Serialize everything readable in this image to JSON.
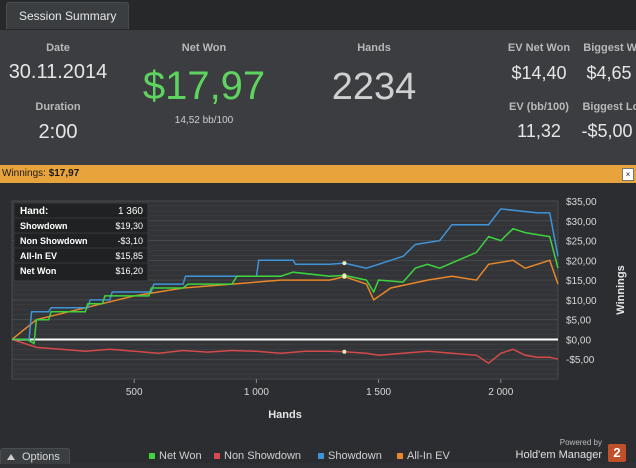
{
  "tab": {
    "label": "Session Summary"
  },
  "stats": {
    "date_label": "Date",
    "date": "30.11.2014",
    "duration_label": "Duration",
    "duration": "2:00",
    "net_won_label": "Net Won",
    "net_won": "$17,97",
    "bb_per_100": "14,52 bb/100",
    "hands_label": "Hands",
    "hands": "2234",
    "ev_net_won_label": "EV Net Won",
    "ev_net_won": "$14,40",
    "biggest_win_label": "Biggest Win",
    "biggest_win": "$4,65",
    "ev_bb_label": "EV (bb/100)",
    "ev_bb": "11,32",
    "biggest_loss_label": "Biggest Loss",
    "biggest_loss": "-$5,00"
  },
  "banner": {
    "label": "Winnings:",
    "value": "$17,97",
    "close_glyph": "×"
  },
  "tooltip": {
    "rows": [
      {
        "label": "Hand:",
        "value": "1 360"
      },
      {
        "label": "Showdown",
        "value": "$19,30"
      },
      {
        "label": "Non Showdown",
        "value": "-$3,10"
      },
      {
        "label": "All-In EV",
        "value": "$15,85"
      },
      {
        "label": "Net Won",
        "value": "$16,20"
      }
    ]
  },
  "legend": [
    {
      "name": "Net Won",
      "color": "#3ed43e"
    },
    {
      "name": "Non Showdown",
      "color": "#d44a4a"
    },
    {
      "name": "Showdown",
      "color": "#3f94d8"
    },
    {
      "name": "All-In EV",
      "color": "#e8872a"
    }
  ],
  "footer": {
    "options_label": "Options",
    "options_icon": "chevron-up-icon",
    "powered_by": "Powered by",
    "brand": "Hold'em Manager",
    "brand_version": "2"
  },
  "chart_data": {
    "type": "line",
    "xlabel": "Hands",
    "ylabel": "Winnings",
    "xlim": [
      0,
      2234
    ],
    "ylim": [
      -10,
      35
    ],
    "x_ticks": [
      500,
      1000,
      1500,
      2000
    ],
    "x_tick_labels": [
      "500",
      "1 000",
      "1 500",
      "2 000"
    ],
    "y_ticks": [
      -5,
      0,
      5,
      10,
      15,
      20,
      25,
      30,
      35
    ],
    "y_tick_labels": [
      "-$5,00",
      "$0,00",
      "$5,00",
      "$10,00",
      "$15,00",
      "$20,00",
      "$25,00",
      "$30,00",
      "$35,00"
    ],
    "grid": true,
    "highlight_x": 1360,
    "series": [
      {
        "name": "Net Won",
        "color": "#3ed43e",
        "points": [
          [
            0,
            0
          ],
          [
            60,
            0
          ],
          [
            90,
            -1
          ],
          [
            100,
            5
          ],
          [
            150,
            5
          ],
          [
            160,
            7
          ],
          [
            300,
            7
          ],
          [
            310,
            9
          ],
          [
            370,
            9
          ],
          [
            380,
            11
          ],
          [
            560,
            11
          ],
          [
            570,
            13
          ],
          [
            700,
            13
          ],
          [
            720,
            14
          ],
          [
            900,
            14
          ],
          [
            920,
            16
          ],
          [
            1100,
            16
          ],
          [
            1150,
            17
          ],
          [
            1300,
            16
          ],
          [
            1360,
            16.2
          ],
          [
            1450,
            15
          ],
          [
            1480,
            12
          ],
          [
            1500,
            15
          ],
          [
            1600,
            14.5
          ],
          [
            1650,
            18
          ],
          [
            1700,
            19
          ],
          [
            1750,
            18
          ],
          [
            1900,
            22
          ],
          [
            1950,
            26
          ],
          [
            2000,
            25
          ],
          [
            2050,
            28
          ],
          [
            2100,
            27
          ],
          [
            2200,
            26
          ],
          [
            2234,
            18
          ]
        ]
      },
      {
        "name": "Non Showdown",
        "color": "#d44a4a",
        "points": [
          [
            0,
            0
          ],
          [
            100,
            -2
          ],
          [
            200,
            -2.5
          ],
          [
            300,
            -3
          ],
          [
            400,
            -2.5
          ],
          [
            500,
            -3
          ],
          [
            600,
            -3.5
          ],
          [
            700,
            -2.8
          ],
          [
            800,
            -3.2
          ],
          [
            900,
            -2.8
          ],
          [
            1000,
            -3
          ],
          [
            1100,
            -3.5
          ],
          [
            1200,
            -3
          ],
          [
            1300,
            -3
          ],
          [
            1360,
            -3.1
          ],
          [
            1450,
            -3.5
          ],
          [
            1500,
            -4
          ],
          [
            1600,
            -3.5
          ],
          [
            1700,
            -3
          ],
          [
            1800,
            -3.5
          ],
          [
            1900,
            -4
          ],
          [
            1950,
            -6
          ],
          [
            2000,
            -3.5
          ],
          [
            2050,
            -2.5
          ],
          [
            2100,
            -4
          ],
          [
            2150,
            -4.5
          ],
          [
            2200,
            -4.5
          ],
          [
            2234,
            -5
          ]
        ]
      },
      {
        "name": "Showdown",
        "color": "#3f94d8",
        "points": [
          [
            0,
            0
          ],
          [
            70,
            0
          ],
          [
            80,
            7
          ],
          [
            150,
            7
          ],
          [
            160,
            8
          ],
          [
            310,
            8
          ],
          [
            320,
            10
          ],
          [
            400,
            10
          ],
          [
            410,
            12
          ],
          [
            570,
            12
          ],
          [
            580,
            14
          ],
          [
            700,
            14
          ],
          [
            710,
            16
          ],
          [
            1000,
            16
          ],
          [
            1010,
            20
          ],
          [
            1150,
            20
          ],
          [
            1160,
            19
          ],
          [
            1300,
            19
          ],
          [
            1360,
            19.3
          ],
          [
            1450,
            18
          ],
          [
            1500,
            19
          ],
          [
            1600,
            21
          ],
          [
            1650,
            24
          ],
          [
            1750,
            25
          ],
          [
            1800,
            29
          ],
          [
            1950,
            29
          ],
          [
            2000,
            33
          ],
          [
            2150,
            32
          ],
          [
            2200,
            32
          ],
          [
            2234,
            21
          ]
        ]
      },
      {
        "name": "All-In EV",
        "color": "#e8872a",
        "points": [
          [
            0,
            0
          ],
          [
            100,
            5
          ],
          [
            300,
            8
          ],
          [
            500,
            11
          ],
          [
            700,
            13
          ],
          [
            900,
            14
          ],
          [
            1100,
            15
          ],
          [
            1300,
            15
          ],
          [
            1360,
            15.85
          ],
          [
            1450,
            14
          ],
          [
            1480,
            10
          ],
          [
            1550,
            13
          ],
          [
            1700,
            15
          ],
          [
            1800,
            16
          ],
          [
            1900,
            15
          ],
          [
            1950,
            19
          ],
          [
            2050,
            20
          ],
          [
            2100,
            18
          ],
          [
            2200,
            20
          ],
          [
            2234,
            14
          ]
        ]
      }
    ]
  }
}
